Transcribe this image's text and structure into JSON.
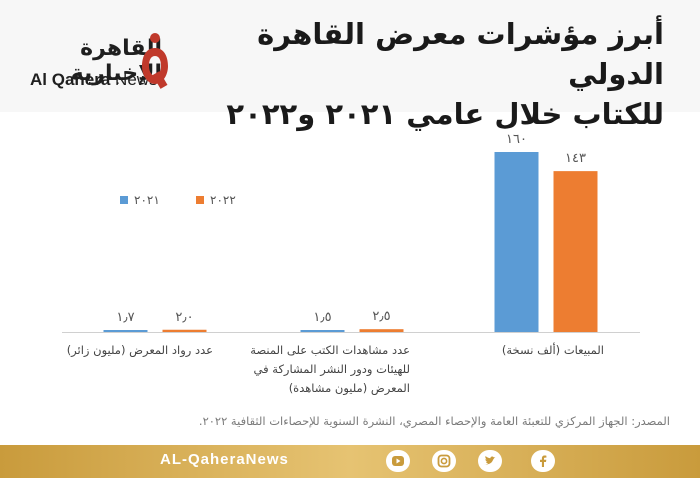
{
  "header": {
    "title_line1": "أبرز مؤشرات معرض القاهرة الدولي",
    "title_line2": "للكتاب خلال عامي ٢٠٢١ و٢٠٢٢",
    "logo_ar": "القاهرة الإخبارية",
    "logo_en_bold": "Al Qahera",
    "logo_en_light": " News"
  },
  "chart_data": {
    "type": "bar",
    "categories": [
      "المبيعات (ألف نسخة)",
      "عدد مشاهدات الكتب على المنصة للهيئات ودور النشر المشاركة في المعرض (مليون مشاهدة)",
      "عدد رواد المعرض (مليون زائر)"
    ],
    "category_lines": [
      [
        "المبيعات (ألف نسخة)"
      ],
      [
        "عدد مشاهدات الكتب على المنصة",
        "للهيئات ودور النشر المشاركة في",
        "المعرض (مليون مشاهدة)"
      ],
      [
        "عدد رواد المعرض (مليون زائر)"
      ]
    ],
    "series": [
      {
        "name": "٢٠٢١",
        "values": [
          160,
          1.5,
          1.7
        ],
        "labels": [
          "١٦٠",
          "١٫٥",
          "١٫٧"
        ],
        "color": "#5b9bd5"
      },
      {
        "name": "٢٠٢٢",
        "values": [
          143,
          2.5,
          2.0
        ],
        "labels": [
          "١٤٣",
          "٢٫٥",
          "٢٫٠"
        ],
        "color": "#ed7d31"
      }
    ],
    "ylim": [
      0,
      160
    ],
    "legend": "top-left",
    "grid": false
  },
  "source": "المصدر: الجهاز المركزي للتعبئة العامة والإحصاء المصري، النشرة السنوية للإحصاءات الثقافية ٢٠٢٢.",
  "footer": {
    "site": "AL-QaheraNews",
    "icons": [
      "youtube-icon",
      "instagram-icon",
      "twitter-icon",
      "facebook-icon"
    ]
  },
  "colors": {
    "accent": "#c0392b",
    "footer_gold": "#d9b25a"
  }
}
